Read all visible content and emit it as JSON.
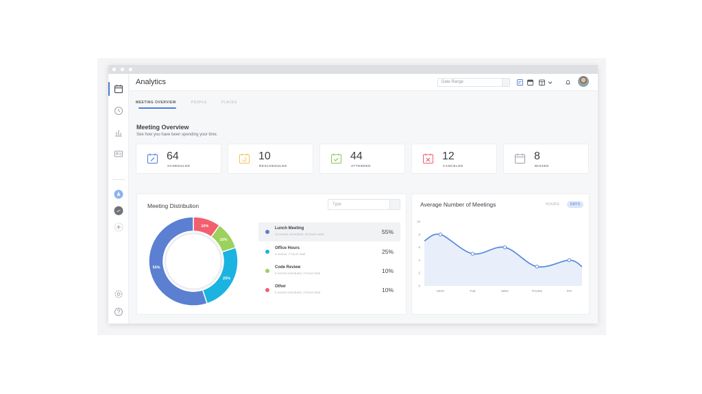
{
  "app": {
    "title": "Analytics"
  },
  "header": {
    "date_range_placeholder": "Date Range"
  },
  "tabs": [
    {
      "label": "MEETING OVERVIEW"
    },
    {
      "label": "PEOPLE"
    },
    {
      "label": "PLACES"
    }
  ],
  "overview": {
    "title": "Meeting Overview",
    "subtitle": "See how you have been spending your time."
  },
  "stats": [
    {
      "value": "64",
      "label": "SCHEDULED",
      "color": "#4a7bd8",
      "icon": "calendar-edit-icon"
    },
    {
      "value": "10",
      "label": "RESCHEDULED",
      "color": "#f2c14e",
      "icon": "calendar-refresh-icon"
    },
    {
      "value": "44",
      "label": "ATTENDED",
      "color": "#8cc152",
      "icon": "calendar-check-icon"
    },
    {
      "value": "12",
      "label": "CANCELED",
      "color": "#ef5a6f",
      "icon": "calendar-x-icon"
    },
    {
      "value": "8",
      "label": "MISSED",
      "color": "#9aa0a8",
      "icon": "calendar-blank-icon"
    }
  ],
  "distribution": {
    "title": "Meeting Distribution",
    "type_placeholder": "Type",
    "items": [
      {
        "name": "Lunch Meeting",
        "desc": "10 events scheduled, 20 hours total",
        "pct": "55%",
        "color": "#5b7fd1"
      },
      {
        "name": "Office Hours",
        "desc": "5 events, 7 hours total",
        "pct": "25%",
        "color": "#1bb3e0"
      },
      {
        "name": "Code Review",
        "desc": "5 events scheduled, 3 hours total",
        "pct": "10%",
        "color": "#9bd15c"
      },
      {
        "name": "Other",
        "desc": "5 events scheduled, 3 hours total",
        "pct": "10%",
        "color": "#f25f6e"
      }
    ]
  },
  "average": {
    "title": "Average Number of Meetings",
    "toggle_hours": "HOURS",
    "toggle_days": "DAYS"
  },
  "chart_data": [
    {
      "type": "pie",
      "title": "Meeting Distribution",
      "categories": [
        "Lunch Meeting",
        "Office Hours",
        "Code Review",
        "Other"
      ],
      "values": [
        55,
        25,
        10,
        10
      ],
      "labels": [
        "55%",
        "25%",
        "10%",
        "10%"
      ],
      "colors": [
        "#5b7fd1",
        "#1bb3e0",
        "#9bd15c",
        "#f25f6e"
      ]
    },
    {
      "type": "area",
      "title": "Average Number of Meetings",
      "categories": [
        "MON",
        "TUE",
        "WED",
        "THURS",
        "FRI"
      ],
      "x": [
        0.5,
        1,
        2,
        3,
        4,
        5,
        5.4
      ],
      "y": [
        7,
        8,
        5,
        6,
        3,
        4,
        3
      ],
      "markers": [
        1,
        2,
        3,
        4,
        5
      ],
      "yticks": [
        0,
        2,
        4,
        6,
        8,
        10
      ],
      "ylim": [
        0,
        10
      ],
      "color": "#5b8bdc"
    }
  ]
}
